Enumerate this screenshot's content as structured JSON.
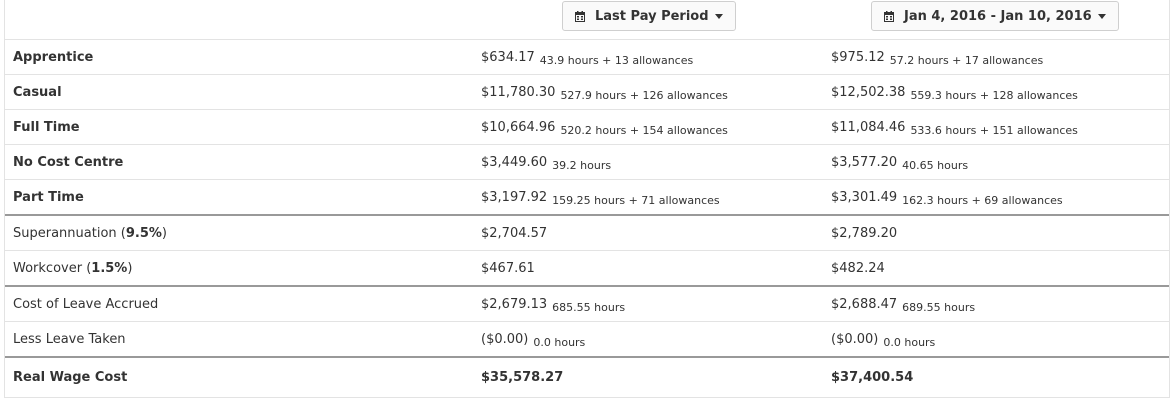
{
  "header": {
    "period_button": "Last Pay Period",
    "range_button": "Jan 4, 2016 - Jan 10, 2016"
  },
  "rows": [
    {
      "label": "Apprentice",
      "a1": "$634.17",
      "d1": "43.9 hours + 13 allowances",
      "a2": "$975.12",
      "d2": "57.2 hours + 17 allowances"
    },
    {
      "label": "Casual",
      "a1": "$11,780.30",
      "d1": "527.9 hours + 126 allowances",
      "a2": "$12,502.38",
      "d2": "559.3 hours + 128 allowances"
    },
    {
      "label": "Full Time",
      "a1": "$10,664.96",
      "d1": "520.2 hours + 154 allowances",
      "a2": "$11,084.46",
      "d2": "533.6 hours + 151 allowances"
    },
    {
      "label": "No Cost Centre",
      "a1": "$3,449.60",
      "d1": "39.2 hours",
      "a2": "$3,577.20",
      "d2": "40.65 hours"
    },
    {
      "label": "Part Time",
      "a1": "$3,197.92",
      "d1": "159.25 hours + 71 allowances",
      "a2": "$3,301.49",
      "d2": "162.3 hours + 69 allowances"
    }
  ],
  "super": {
    "label": "Superannuation",
    "rate": "9.5%",
    "a1": "$2,704.57",
    "a2": "$2,789.20"
  },
  "workcover": {
    "label": "Workcover",
    "rate": "1.5%",
    "a1": "$467.61",
    "a2": "$482.24"
  },
  "leave_accrued": {
    "label": "Cost of Leave Accrued",
    "a1": "$2,679.13",
    "d1": "685.55 hours",
    "a2": "$2,688.47",
    "d2": "689.55 hours"
  },
  "leave_taken": {
    "label": "Less Leave Taken",
    "a1": "($0.00)",
    "d1": "0.0 hours",
    "a2": "($0.00)",
    "d2": "0.0 hours"
  },
  "total": {
    "label": "Real Wage Cost",
    "a1": "$35,578.27",
    "a2": "$37,400.54"
  }
}
